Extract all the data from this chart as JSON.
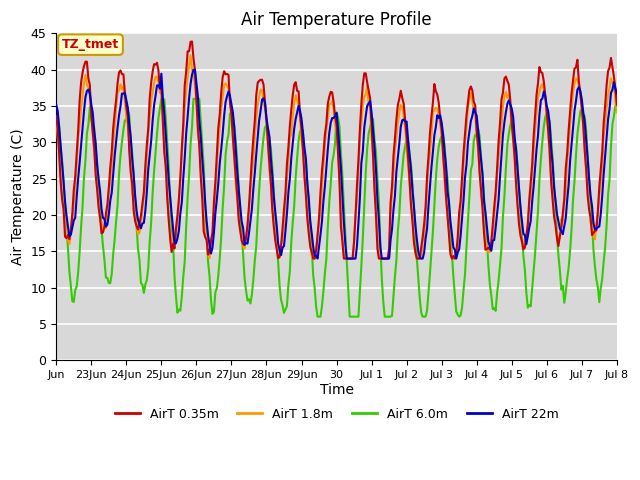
{
  "title": "Air Temperature Profile",
  "xlabel": "Time",
  "ylabel": "Air Temperature (C)",
  "ylim": [
    0,
    45
  ],
  "yticks": [
    0,
    5,
    10,
    15,
    20,
    25,
    30,
    35,
    40,
    45
  ],
  "plot_bg_color": "#d8d8d8",
  "fig_bg_color": "#ffffff",
  "grid_color": "#ffffff",
  "series_colors": {
    "AirT 0.35m": "#cc0000",
    "AirT 1.8m": "#ff9900",
    "AirT 6.0m": "#33cc00",
    "AirT 22m": "#0000cc"
  },
  "label_box": {
    "text": "TZ_tmet",
    "facecolor": "#ffffcc",
    "edgecolor": "#cc9900",
    "textcolor": "#cc0000"
  },
  "xtick_labels": [
    "Jun",
    "23Jun",
    "24Jun",
    "25Jun",
    "26Jun",
    "27Jun",
    "28Jun",
    "29Jun",
    "30",
    "Jul 1",
    "Jul 2",
    "Jul 3",
    "Jul 4",
    "Jul 5",
    "Jul 6",
    "Jul 7",
    "Jul 8"
  ],
  "line_width": 1.5,
  "legend_labels": [
    "AirT 0.35m",
    "AirT 1.8m",
    "AirT 6.0m",
    "AirT 22m"
  ]
}
